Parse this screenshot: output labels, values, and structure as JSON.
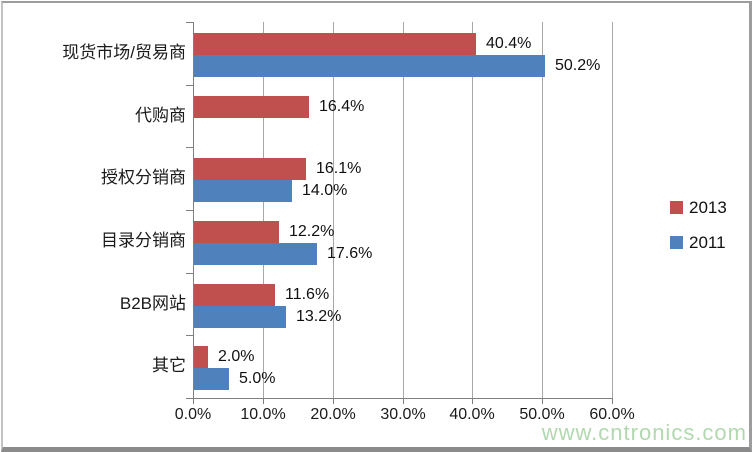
{
  "watermark": {
    "text": "www.cntronics.com",
    "color": "#a4d2a2"
  },
  "chart_data": {
    "type": "bar",
    "orientation": "horizontal",
    "title": "",
    "xlabel": "",
    "ylabel": "",
    "categories": [
      "现货市场/贸易商",
      "代购商",
      "授权分销商",
      "目录分销商",
      "B2B网站",
      "其它"
    ],
    "series": [
      {
        "name": "2013",
        "color": "#c0504d",
        "values": [
          40.4,
          16.4,
          16.1,
          12.2,
          11.6,
          2.0
        ]
      },
      {
        "name": "2011",
        "color": "#4f81bd",
        "values": [
          50.2,
          null,
          14.0,
          17.6,
          13.2,
          5.0
        ]
      }
    ],
    "data_labels": [
      [
        "40.4%",
        "16.4%",
        "16.1%",
        "12.2%",
        "11.6%",
        "2.0%"
      ],
      [
        "50.2%",
        null,
        "14.0%",
        "17.6%",
        "13.2%",
        "5.0%"
      ]
    ],
    "x_ticks": [
      "0.0%",
      "10.0%",
      "20.0%",
      "30.0%",
      "40.0%",
      "50.0%",
      "60.0%"
    ],
    "xlim": [
      0,
      60
    ],
    "grid": true,
    "legend_position": "right",
    "axis_color": "#808080",
    "gridline_color": "#a8a8a8",
    "background": "#ffffff"
  }
}
